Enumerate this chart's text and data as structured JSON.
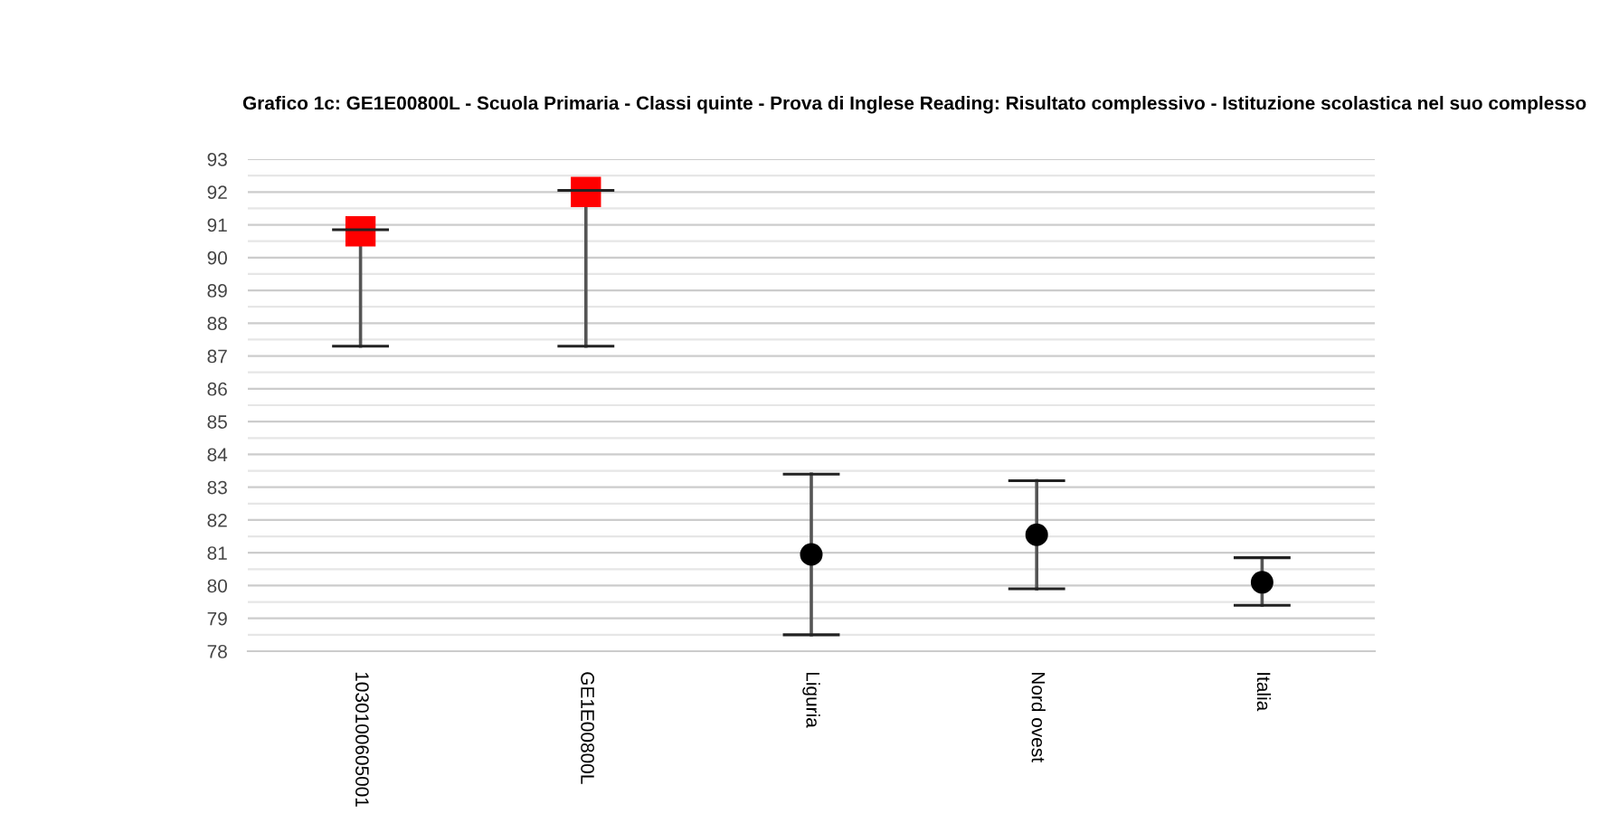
{
  "chart_data": {
    "type": "scatter",
    "title": "Grafico 1c: GE1E00800L - Scuola Primaria - Classi quinte - Prova di Inglese Reading: Risultato complessivo - Istituzione scolastica nel suo complesso",
    "categories": [
      "1030100605001",
      "GE1E00800L",
      "Liguria",
      "Nord ovest",
      "Italia"
    ],
    "series": [
      {
        "color": "#ff0000",
        "marker": "square",
        "values": [
          90.8,
          92.0,
          null,
          null,
          null
        ],
        "errors": [
          [
            87.3,
            90.85
          ],
          [
            87.3,
            92.05
          ],
          null,
          null,
          null
        ]
      },
      {
        "color": "#000000",
        "marker": "circle",
        "values": [
          null,
          null,
          80.95,
          81.55,
          80.1
        ],
        "errors": [
          null,
          null,
          [
            78.5,
            83.4
          ],
          [
            79.9,
            83.2
          ],
          [
            79.4,
            80.85
          ]
        ]
      }
    ],
    "ylim": [
      78,
      93
    ],
    "yticks": [
      78,
      {
        "value": 78.5,
        "label": null
      },
      79,
      {
        "value": 79.5,
        "label": null
      },
      80,
      {
        "value": 80.5,
        "label": null
      },
      81,
      {
        "value": 81.5,
        "label": null
      },
      82,
      {
        "value": 82.5,
        "label": null
      },
      83,
      {
        "value": 83.5,
        "label": null
      },
      84,
      {
        "value": 84.5,
        "label": null
      },
      85,
      {
        "value": 85.5,
        "label": null
      },
      86,
      {
        "value": 86.5,
        "label": null
      },
      87,
      {
        "value": 87.5,
        "label": null
      },
      88,
      {
        "value": 88.5,
        "label": null
      },
      89,
      {
        "value": 89.5,
        "label": null
      },
      90,
      {
        "value": 90.5,
        "label": null
      },
      91,
      {
        "value": 91.5,
        "label": null
      },
      92,
      {
        "value": 92.5,
        "label": null
      },
      93
    ],
    "grid": "y",
    "legend": false
  }
}
